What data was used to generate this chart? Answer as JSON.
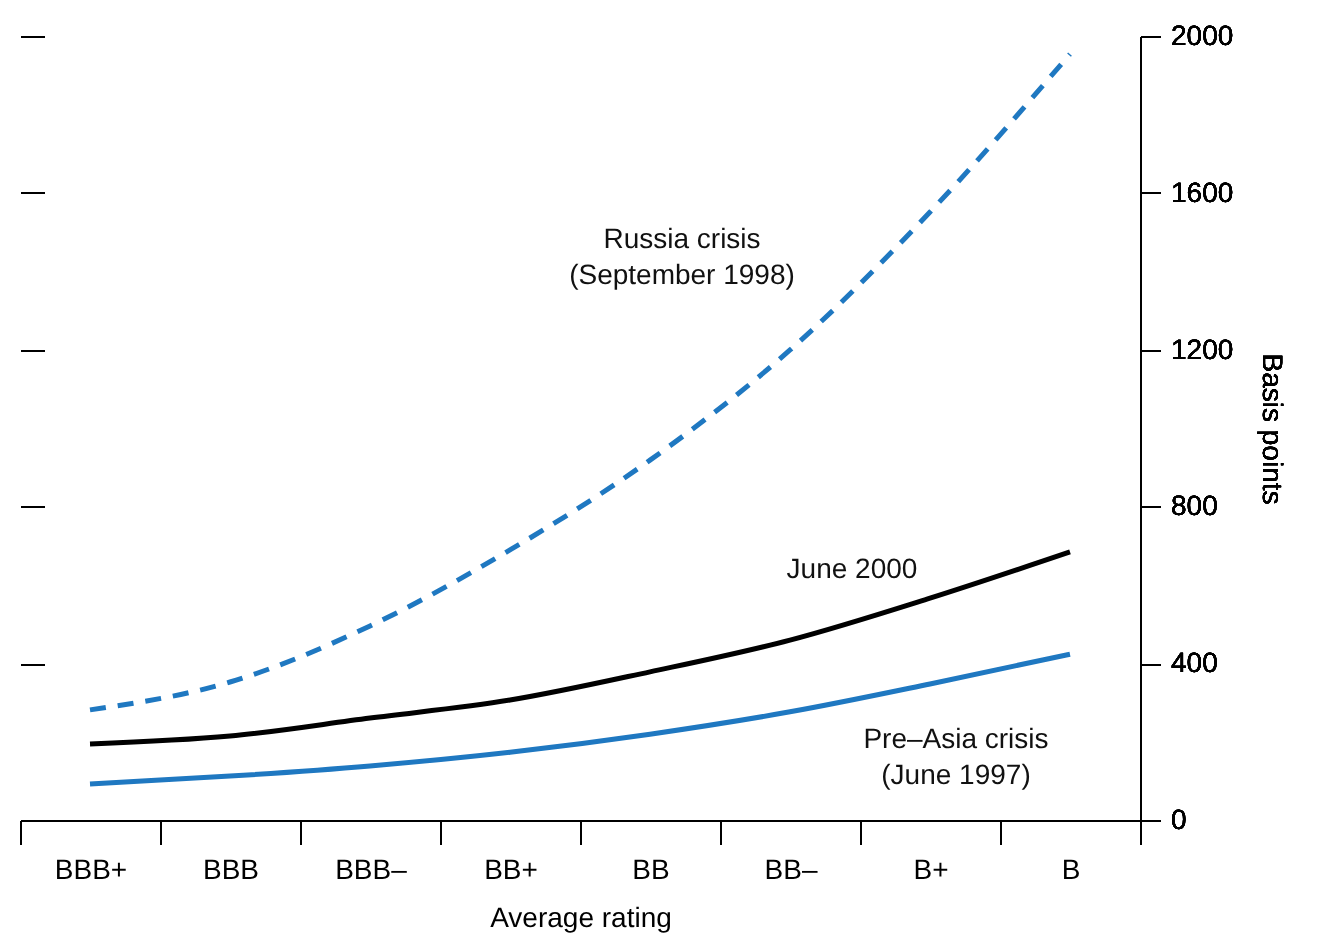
{
  "chart_data": {
    "type": "line",
    "xlabel": "Average rating",
    "ylabel": "Basis points",
    "categories": [
      "BBB+",
      "BBB",
      "BBB–",
      "BB+",
      "BB",
      "BB–",
      "B+",
      "B"
    ],
    "series": [
      {
        "name": "Russia crisis\n(September 1998)",
        "color": "#1f78c1",
        "line_style": "dashed",
        "values": [
          281,
          352,
          495,
          689,
          918,
          1199,
          1551,
          1954
        ]
      },
      {
        "name": "June 2000",
        "color": "#000000",
        "line_style": "solid",
        "values": [
          194,
          214,
          260,
          306,
          378,
          459,
          566,
          684
        ]
      },
      {
        "name": "Pre–Asia crisis\n(June 1997)",
        "color": "#1f78c1",
        "line_style": "solid",
        "values": [
          92,
          112,
          138,
          173,
          219,
          276,
          347,
          423
        ]
      }
    ],
    "ylim": [
      0,
      2000
    ],
    "yticks": [
      0,
      400,
      800,
      1200,
      1600,
      2000
    ],
    "grid": false,
    "marker": "none"
  }
}
